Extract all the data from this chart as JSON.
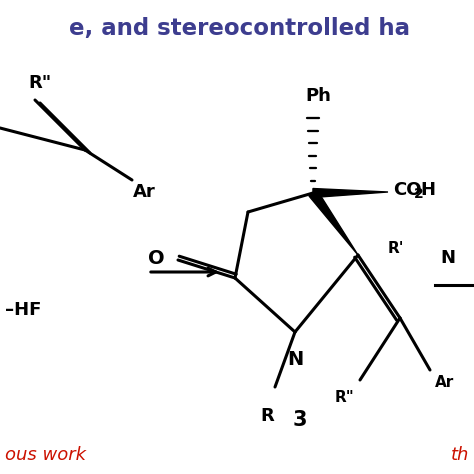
{
  "bg_color": "#ffffff",
  "title_text": "e, and stereocontrolled ha",
  "title_color": "#3d3d8f",
  "title_fontsize": 16.5,
  "bottom_left_text": "ous work",
  "bottom_left_color": "#cc1100",
  "bottom_right_text": "th",
  "bottom_right_color": "#cc1100",
  "label_3": "3",
  "lw": 2.2,
  "black": "#000000",
  "fs_main": 13,
  "fs_sub": 11,
  "fs_title_num": 15
}
